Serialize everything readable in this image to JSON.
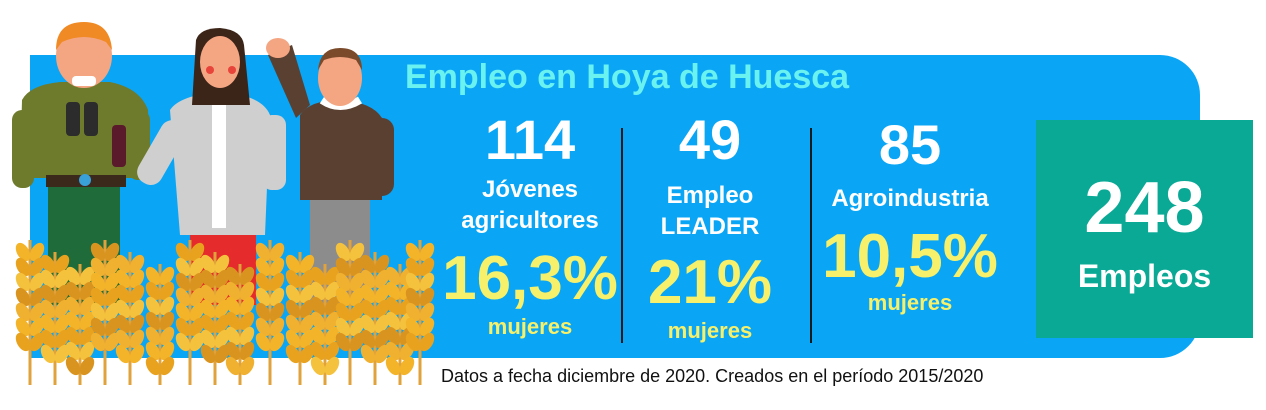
{
  "title": "Empleo en Hoya de Huesca",
  "stats": [
    {
      "number": "114",
      "label_line1": "Jóvenes",
      "label_line2": "agricultores",
      "percent": "16,3%",
      "percent_label": "mujeres"
    },
    {
      "number": "49",
      "label_line1": "Empleo",
      "label_line2": "LEADER",
      "percent": "21%",
      "percent_label": "mujeres"
    },
    {
      "number": "85",
      "label_line1": "Agroindustria",
      "label_line2": "",
      "percent": "10,5%",
      "percent_label": "mujeres"
    }
  ],
  "total": {
    "number": "248",
    "label": "Empleos"
  },
  "footnote": "Datos a fecha diciembre de 2020. Creados en el período 2015/2020",
  "colors": {
    "panel": "#0aa6f5",
    "title": "#6af2f0",
    "highlight": "#f7f06a",
    "total_box": "#0aa996"
  },
  "illustration": {
    "icons": [
      "farmer-with-binoculars",
      "woman-with-wine-bottle",
      "waving-man",
      "wheat-field"
    ]
  }
}
